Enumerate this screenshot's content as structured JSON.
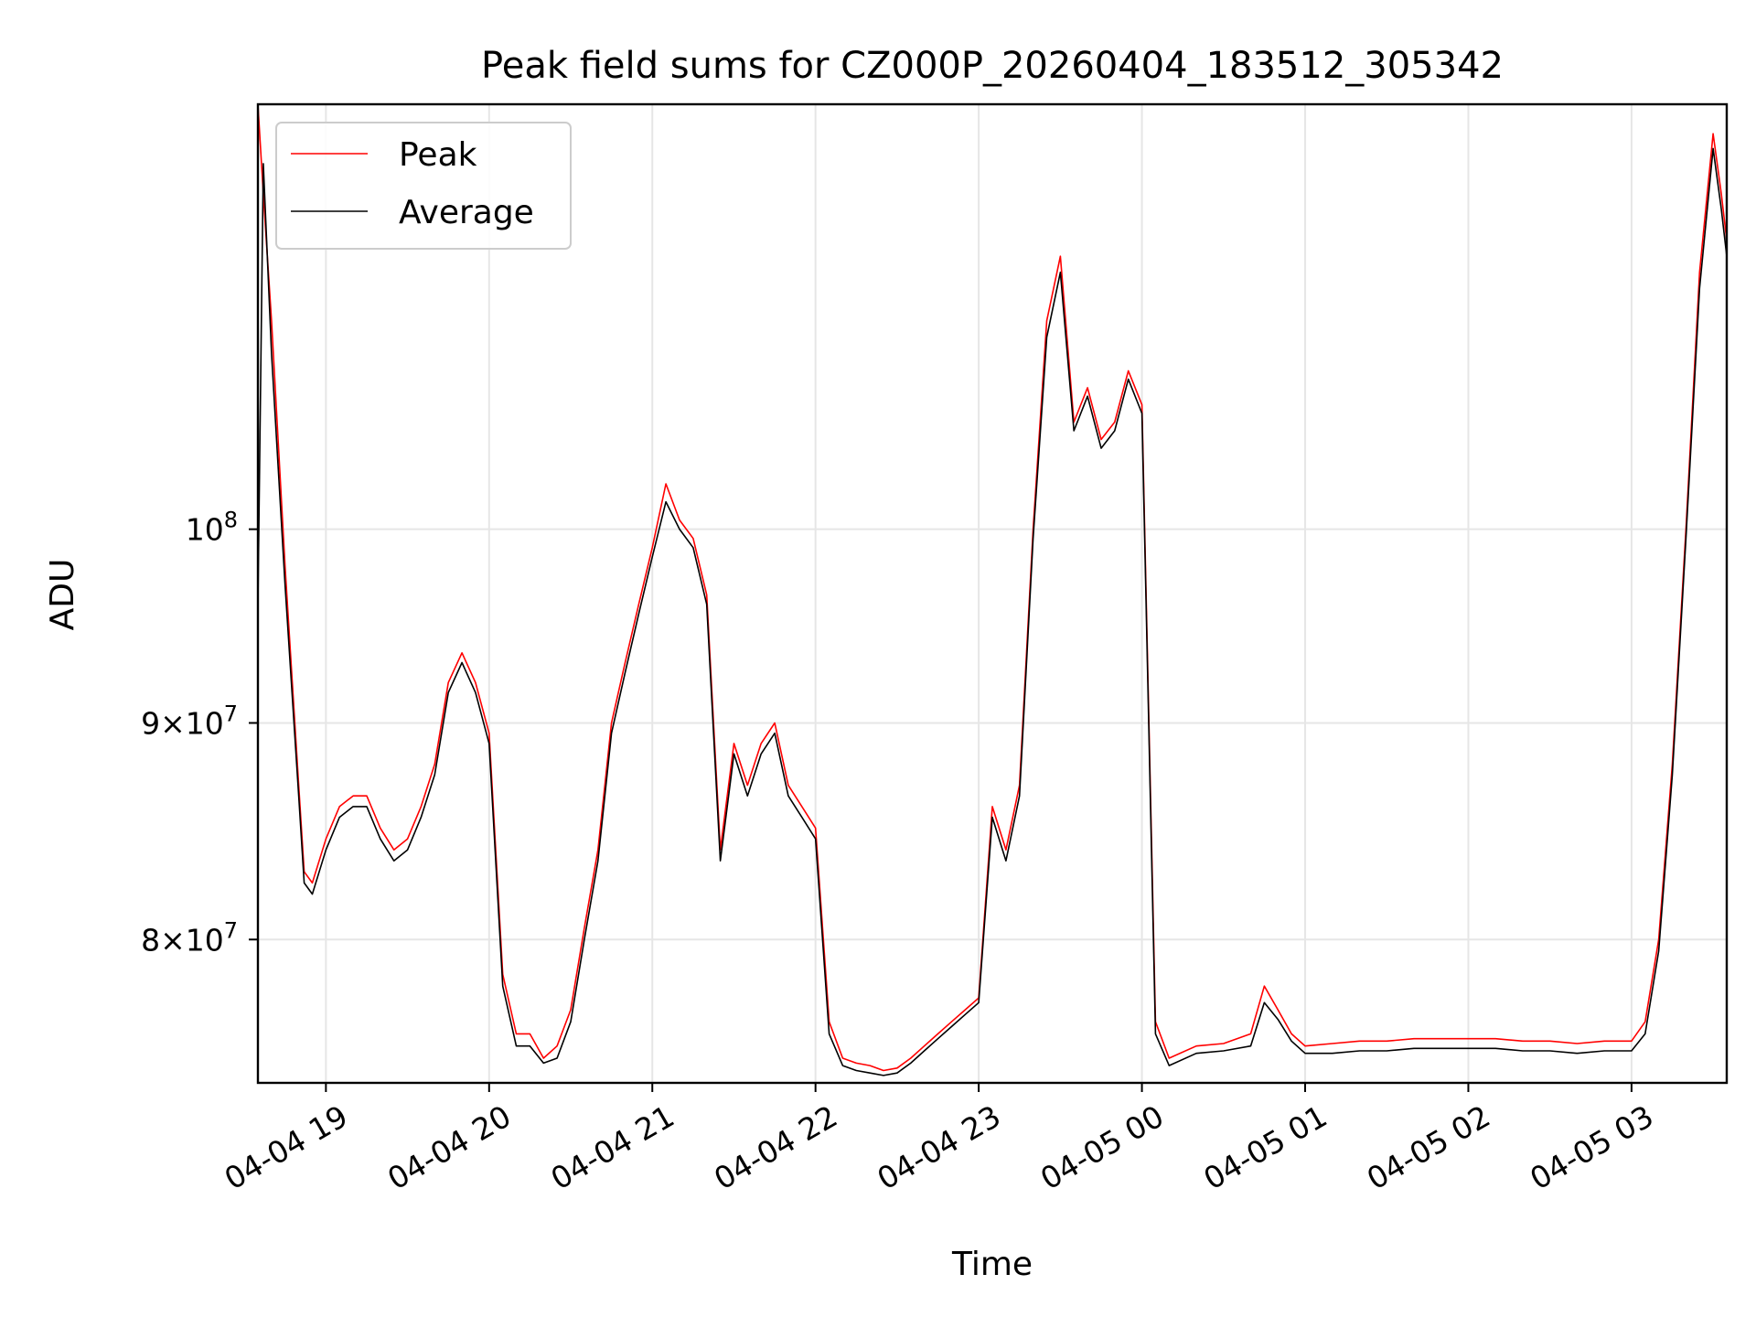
{
  "chart_data": {
    "type": "line",
    "title": "Peak field sums for CZ000P_20260404_183512_305342",
    "xlabel": "Time",
    "ylabel": "ADU",
    "yscale": "log",
    "grid": true,
    "legend_placement": "top-left",
    "xlim": [
      "2026-04-04 18:35",
      "2026-04-05 03:35"
    ],
    "ylim": [
      74000000,
      126000000
    ],
    "x_ticks": [
      {
        "value": "2026-04-04 19:00",
        "label": "04-04 19"
      },
      {
        "value": "2026-04-04 20:00",
        "label": "04-04 20"
      },
      {
        "value": "2026-04-04 21:00",
        "label": "04-04 21"
      },
      {
        "value": "2026-04-04 22:00",
        "label": "04-04 22"
      },
      {
        "value": "2026-04-04 23:00",
        "label": "04-04 23"
      },
      {
        "value": "2026-04-05 00:00",
        "label": "04-05 00"
      },
      {
        "value": "2026-04-05 01:00",
        "label": "04-05 01"
      },
      {
        "value": "2026-04-05 02:00",
        "label": "04-05 02"
      },
      {
        "value": "2026-04-05 03:00",
        "label": "04-05 03"
      }
    ],
    "y_ticks": [
      {
        "value": 80000000,
        "mantissa": "8",
        "base": "10",
        "exp": "7"
      },
      {
        "value": 90000000,
        "mantissa": "9",
        "base": "10",
        "exp": "7"
      },
      {
        "value": 100000000,
        "mantissa": "",
        "base": "10",
        "exp": "8"
      }
    ],
    "series": [
      {
        "name": "Peak",
        "color": "#ff0000",
        "x": [
          "2026-04-04 18:35",
          "2026-04-04 18:37",
          "2026-04-04 18:40",
          "2026-04-04 18:45",
          "2026-04-04 18:50",
          "2026-04-04 18:52",
          "2026-04-04 18:55",
          "2026-04-04 19:00",
          "2026-04-04 19:05",
          "2026-04-04 19:10",
          "2026-04-04 19:15",
          "2026-04-04 19:20",
          "2026-04-04 19:25",
          "2026-04-04 19:30",
          "2026-04-04 19:35",
          "2026-04-04 19:40",
          "2026-04-04 19:45",
          "2026-04-04 19:50",
          "2026-04-04 19:55",
          "2026-04-04 20:00",
          "2026-04-04 20:05",
          "2026-04-04 20:10",
          "2026-04-04 20:15",
          "2026-04-04 20:20",
          "2026-04-04 20:25",
          "2026-04-04 20:30",
          "2026-04-04 20:35",
          "2026-04-04 20:40",
          "2026-04-04 20:45",
          "2026-04-04 20:50",
          "2026-04-04 20:55",
          "2026-04-04 21:00",
          "2026-04-04 21:05",
          "2026-04-04 21:10",
          "2026-04-04 21:15",
          "2026-04-04 21:20",
          "2026-04-04 21:25",
          "2026-04-04 21:30",
          "2026-04-04 21:35",
          "2026-04-04 21:40",
          "2026-04-04 21:45",
          "2026-04-04 21:50",
          "2026-04-04 21:55",
          "2026-04-04 22:00",
          "2026-04-04 22:05",
          "2026-04-04 22:10",
          "2026-04-04 22:15",
          "2026-04-04 22:20",
          "2026-04-04 22:25",
          "2026-04-04 22:30",
          "2026-04-04 22:35",
          "2026-04-04 22:40",
          "2026-04-04 22:45",
          "2026-04-04 22:50",
          "2026-04-04 22:55",
          "2026-04-04 23:00",
          "2026-04-04 23:05",
          "2026-04-04 23:10",
          "2026-04-04 23:15",
          "2026-04-04 23:20",
          "2026-04-04 23:25",
          "2026-04-04 23:30",
          "2026-04-04 23:35",
          "2026-04-04 23:40",
          "2026-04-04 23:45",
          "2026-04-04 23:50",
          "2026-04-04 23:55",
          "2026-04-05 00:00",
          "2026-04-05 00:05",
          "2026-04-05 00:10",
          "2026-04-05 00:20",
          "2026-04-05 00:30",
          "2026-04-05 00:40",
          "2026-04-05 00:45",
          "2026-04-05 00:50",
          "2026-04-05 00:55",
          "2026-04-05 01:00",
          "2026-04-05 01:10",
          "2026-04-05 01:20",
          "2026-04-05 01:30",
          "2026-04-05 01:40",
          "2026-04-05 01:50",
          "2026-04-05 02:00",
          "2026-04-05 02:10",
          "2026-04-05 02:20",
          "2026-04-05 02:30",
          "2026-04-05 02:40",
          "2026-04-05 02:50",
          "2026-04-05 03:00",
          "2026-04-05 03:05",
          "2026-04-05 03:10",
          "2026-04-05 03:15",
          "2026-04-05 03:20",
          "2026-04-05 03:25",
          "2026-04-05 03:30",
          "2026-04-05 03:33",
          "2026-04-05 03:35"
        ],
        "y": [
          126000000,
          120000000,
          112000000,
          98000000,
          87000000,
          83000000,
          82500000,
          84500000,
          86000000,
          86500000,
          86500000,
          85000000,
          84000000,
          84500000,
          86000000,
          88000000,
          92000000,
          93500000,
          92000000,
          89500000,
          78500000,
          76000000,
          76000000,
          75000000,
          75500000,
          77000000,
          80500000,
          84000000,
          90000000,
          93000000,
          96000000,
          99000000,
          102500000,
          100500000,
          99500000,
          96500000,
          84000000,
          89000000,
          87000000,
          89000000,
          90000000,
          87000000,
          86000000,
          85000000,
          76500000,
          75000000,
          74800000,
          74700000,
          74500000,
          74600000,
          75000000,
          75500000,
          76000000,
          76500000,
          77000000,
          77500000,
          86000000,
          84000000,
          87000000,
          100000000,
          112000000,
          116000000,
          106000000,
          108000000,
          105000000,
          106000000,
          109000000,
          107000000,
          76500000,
          75000000,
          75500000,
          75600000,
          76000000,
          78000000,
          77000000,
          76000000,
          75500000,
          75600000,
          75700000,
          75700000,
          75800000,
          75800000,
          75800000,
          75800000,
          75700000,
          75700000,
          75600000,
          75700000,
          75700000,
          76500000,
          80000000,
          88000000,
          100000000,
          115000000,
          124000000,
          120000000,
          117000000
        ]
      },
      {
        "name": "Average",
        "color": "#000000",
        "x": [
          "2026-04-04 18:35",
          "2026-04-04 18:37",
          "2026-04-04 18:40",
          "2026-04-04 18:45",
          "2026-04-04 18:50",
          "2026-04-04 18:52",
          "2026-04-04 18:55",
          "2026-04-04 19:00",
          "2026-04-04 19:05",
          "2026-04-04 19:10",
          "2026-04-04 19:15",
          "2026-04-04 19:20",
          "2026-04-04 19:25",
          "2026-04-04 19:30",
          "2026-04-04 19:35",
          "2026-04-04 19:40",
          "2026-04-04 19:45",
          "2026-04-04 19:50",
          "2026-04-04 19:55",
          "2026-04-04 20:00",
          "2026-04-04 20:05",
          "2026-04-04 20:10",
          "2026-04-04 20:15",
          "2026-04-04 20:20",
          "2026-04-04 20:25",
          "2026-04-04 20:30",
          "2026-04-04 20:35",
          "2026-04-04 20:40",
          "2026-04-04 20:45",
          "2026-04-04 20:50",
          "2026-04-04 20:55",
          "2026-04-04 21:00",
          "2026-04-04 21:05",
          "2026-04-04 21:10",
          "2026-04-04 21:15",
          "2026-04-04 21:20",
          "2026-04-04 21:25",
          "2026-04-04 21:30",
          "2026-04-04 21:35",
          "2026-04-04 21:40",
          "2026-04-04 21:45",
          "2026-04-04 21:50",
          "2026-04-04 21:55",
          "2026-04-04 22:00",
          "2026-04-04 22:05",
          "2026-04-04 22:10",
          "2026-04-04 22:15",
          "2026-04-04 22:20",
          "2026-04-04 22:25",
          "2026-04-04 22:30",
          "2026-04-04 22:35",
          "2026-04-04 22:40",
          "2026-04-04 22:45",
          "2026-04-04 22:50",
          "2026-04-04 22:55",
          "2026-04-04 23:00",
          "2026-04-04 23:05",
          "2026-04-04 23:10",
          "2026-04-04 23:15",
          "2026-04-04 23:20",
          "2026-04-04 23:25",
          "2026-04-04 23:30",
          "2026-04-04 23:35",
          "2026-04-04 23:40",
          "2026-04-04 23:45",
          "2026-04-04 23:50",
          "2026-04-04 23:55",
          "2026-04-05 00:00",
          "2026-04-05 00:05",
          "2026-04-05 00:10",
          "2026-04-05 00:20",
          "2026-04-05 00:30",
          "2026-04-05 00:40",
          "2026-04-05 00:45",
          "2026-04-05 00:50",
          "2026-04-05 00:55",
          "2026-04-05 01:00",
          "2026-04-05 01:10",
          "2026-04-05 01:20",
          "2026-04-05 01:30",
          "2026-04-05 01:40",
          "2026-04-05 01:50",
          "2026-04-05 02:00",
          "2026-04-05 02:10",
          "2026-04-05 02:20",
          "2026-04-05 02:30",
          "2026-04-05 02:40",
          "2026-04-05 02:50",
          "2026-04-05 03:00",
          "2026-04-05 03:05",
          "2026-04-05 03:10",
          "2026-04-05 03:15",
          "2026-04-05 03:20",
          "2026-04-05 03:25",
          "2026-04-05 03:30",
          "2026-04-05 03:33",
          "2026-04-05 03:35"
        ],
        "y": [
          96000000,
          122000000,
          110000000,
          97000000,
          86500000,
          82500000,
          82000000,
          84000000,
          85500000,
          86000000,
          86000000,
          84500000,
          83500000,
          84000000,
          85500000,
          87500000,
          91500000,
          93000000,
          91500000,
          89000000,
          78000000,
          75500000,
          75500000,
          74800000,
          75000000,
          76500000,
          80000000,
          83500000,
          89500000,
          92500000,
          95500000,
          98500000,
          101500000,
          100000000,
          99000000,
          96000000,
          83500000,
          88500000,
          86500000,
          88500000,
          89500000,
          86500000,
          85500000,
          84500000,
          76000000,
          74700000,
          74500000,
          74400000,
          74300000,
          74400000,
          74800000,
          75300000,
          75800000,
          76300000,
          76800000,
          77300000,
          85500000,
          83500000,
          86500000,
          99500000,
          111000000,
          115000000,
          105500000,
          107500000,
          104500000,
          105500000,
          108500000,
          106500000,
          76000000,
          74700000,
          75200000,
          75300000,
          75500000,
          77300000,
          76600000,
          75700000,
          75200000,
          75200000,
          75300000,
          75300000,
          75400000,
          75400000,
          75400000,
          75400000,
          75300000,
          75300000,
          75200000,
          75300000,
          75300000,
          76000000,
          79500000,
          87500000,
          99500000,
          114000000,
          123000000,
          119000000,
          116000000
        ]
      }
    ]
  }
}
